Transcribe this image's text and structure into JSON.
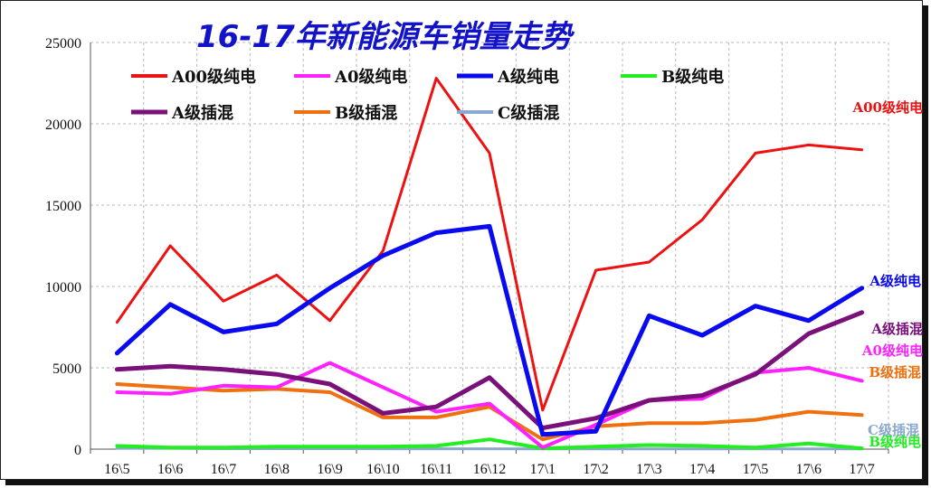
{
  "chart_data": {
    "type": "line",
    "title": "16-17年新能源车销量走势",
    "categories": [
      "16\\5",
      "16\\6",
      "16\\7",
      "16\\8",
      "16\\9",
      "16\\10",
      "16\\11",
      "16\\12",
      "17\\1",
      "17\\2",
      "17\\3",
      "17\\4",
      "17\\5",
      "17\\6",
      "17\\7"
    ],
    "ylim": [
      0,
      25000
    ],
    "yticks": [
      "0",
      "5000",
      "10000",
      "15000",
      "20000",
      "25000"
    ],
    "grid": true,
    "legend_position": "top-left",
    "series": [
      {
        "name": "A00级纯电",
        "color": "#ee1111",
        "width": 3,
        "values": [
          7800,
          12500,
          9100,
          10700,
          7900,
          12200,
          22800,
          18200,
          2400,
          11000,
          11500,
          14100,
          18200,
          18700,
          18400
        ]
      },
      {
        "name": "A0级纯电",
        "color": "#ff22ff",
        "width": 4,
        "values": [
          3500,
          3400,
          3900,
          3800,
          5300,
          3800,
          2300,
          2800,
          100,
          1500,
          3000,
          3100,
          4700,
          5000,
          4200
        ]
      },
      {
        "name": "A级纯电",
        "color": "#0a0af0",
        "width": 5,
        "values": [
          5900,
          8900,
          7200,
          7700,
          9900,
          11900,
          13300,
          13700,
          900,
          1100,
          8200,
          7000,
          8800,
          7900,
          9900
        ]
      },
      {
        "name": "B级纯电",
        "color": "#22ee22",
        "width": 4,
        "values": [
          200,
          100,
          100,
          150,
          150,
          150,
          200,
          600,
          50,
          150,
          250,
          200,
          100,
          350,
          50
        ]
      },
      {
        "name": "A级插混",
        "color": "#7a107a",
        "width": 5,
        "values": [
          4900,
          5100,
          4900,
          4600,
          4000,
          2200,
          2600,
          4400,
          1300,
          1900,
          3000,
          3300,
          4600,
          7100,
          8400
        ]
      },
      {
        "name": "B级插混",
        "color": "#f07010",
        "width": 4,
        "values": [
          4000,
          3800,
          3600,
          3700,
          3500,
          1950,
          1950,
          2600,
          600,
          1400,
          1600,
          1600,
          1800,
          2300,
          2100
        ]
      },
      {
        "name": "C级插混",
        "color": "#8aa8d0",
        "width": 3,
        "values": [
          50,
          50,
          30,
          30,
          30,
          20,
          20,
          20,
          10,
          10,
          10,
          10,
          10,
          10,
          10
        ]
      }
    ]
  },
  "end_labels": [
    {
      "text": "A00级纯电",
      "color": "#ee1111"
    },
    {
      "text": "A级纯电",
      "color": "#0a0af0"
    },
    {
      "text": "A级插混",
      "color": "#7a107a"
    },
    {
      "text": "A0级纯电",
      "color": "#ff22ff"
    },
    {
      "text": "B级插混",
      "color": "#f07010"
    },
    {
      "text": "C级插混",
      "color": "#8aa8d0"
    },
    {
      "text": "B级纯电",
      "color": "#22ee22"
    }
  ]
}
